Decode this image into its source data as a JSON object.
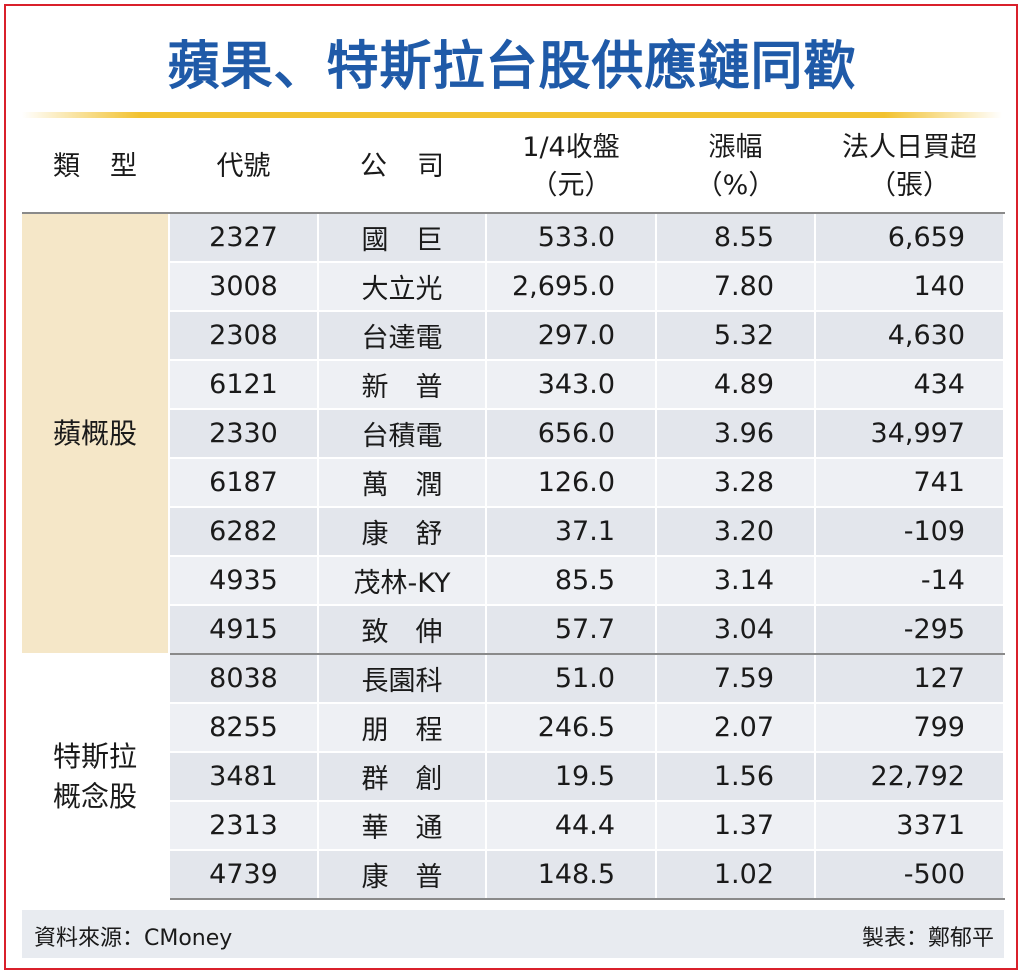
{
  "title": "蘋果、特斯拉台股供應鏈同歡",
  "headers": {
    "type": "類型",
    "code": "代號",
    "company": "公司",
    "close_line1": "1/4收盤",
    "close_line2": "（元）",
    "change_line1": "漲幅",
    "change_line2": "（%）",
    "net_line1": "法人日買超",
    "net_line2": "（張）"
  },
  "groups": [
    {
      "label": "蘋概股",
      "rows": [
        {
          "code": "2327",
          "name": "國　巨",
          "close": "533.0",
          "change": "8.55",
          "net": "6,659"
        },
        {
          "code": "3008",
          "name": "大立光",
          "close": "2,695.0",
          "change": "7.80",
          "net": "140"
        },
        {
          "code": "2308",
          "name": "台達電",
          "close": "297.0",
          "change": "5.32",
          "net": "4,630"
        },
        {
          "code": "6121",
          "name": "新　普",
          "close": "343.0",
          "change": "4.89",
          "net": "434"
        },
        {
          "code": "2330",
          "name": "台積電",
          "close": "656.0",
          "change": "3.96",
          "net": "34,997"
        },
        {
          "code": "6187",
          "name": "萬　潤",
          "close": "126.0",
          "change": "3.28",
          "net": "741"
        },
        {
          "code": "6282",
          "name": "康　舒",
          "close": "37.1",
          "change": "3.20",
          "net": "-109"
        },
        {
          "code": "4935",
          "name": "茂林-KY",
          "close": "85.5",
          "change": "3.14",
          "net": "-14"
        },
        {
          "code": "4915",
          "name": "致　伸",
          "close": "57.7",
          "change": "3.04",
          "net": "-295"
        }
      ]
    },
    {
      "label_line1": "特斯拉",
      "label_line2": "概念股",
      "rows": [
        {
          "code": "8038",
          "name": "長園科",
          "close": "51.0",
          "change": "7.59",
          "net": "127"
        },
        {
          "code": "8255",
          "name": "朋　程",
          "close": "246.5",
          "change": "2.07",
          "net": "799"
        },
        {
          "code": "3481",
          "name": "群　創",
          "close": "19.5",
          "change": "1.56",
          "net": "22,792"
        },
        {
          "code": "2313",
          "name": "華　通",
          "close": "44.4",
          "change": "1.37",
          "net": "3371"
        },
        {
          "code": "4739",
          "name": "康　普",
          "close": "148.5",
          "change": "1.02",
          "net": "-500"
        }
      ]
    }
  ],
  "footer": {
    "source": "資料來源：CMoney",
    "maker": "製表：鄭郁平"
  }
}
